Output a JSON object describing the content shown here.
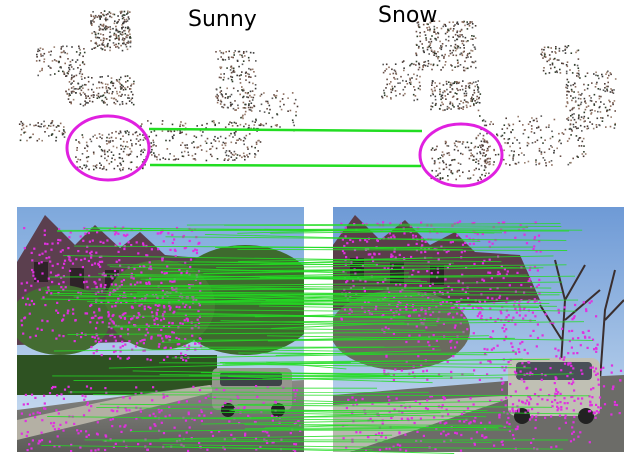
{
  "labels": {
    "left": "Sunny",
    "right": "Snow"
  },
  "colors": {
    "match_line": "#22dd22",
    "highlight_ellipse": "#e020e0",
    "feature_points": "#e030e0",
    "sky": "#9ec4ec",
    "house": "#5a3e4a",
    "tree": "#3e6a2e",
    "road": "#6e6e6e",
    "car": "#a8a8a0"
  }
}
